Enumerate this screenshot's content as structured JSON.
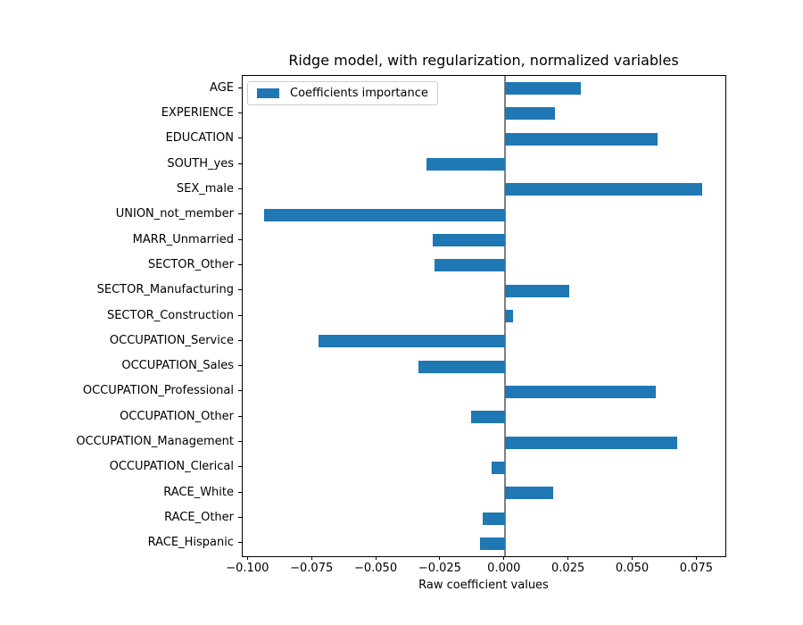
{
  "figure": {
    "background": "#ffffff",
    "colors": {
      "bar": "#1f77b4",
      "zero_line": "#808080",
      "spine": "#000000",
      "legend_border": "#cccccc",
      "text": "#000000"
    }
  },
  "chart_data": {
    "type": "bar",
    "orientation": "horizontal",
    "title": "Ridge model, with regularization, normalized variables",
    "xlabel": "Raw coefficient values",
    "ylabel": "",
    "legend": [
      "Coefficients importance"
    ],
    "legend_position": "upper left",
    "grid": false,
    "categories": [
      "AGE",
      "EXPERIENCE",
      "EDUCATION",
      "SOUTH_yes",
      "SEX_male",
      "UNION_not_member",
      "MARR_Unmarried",
      "SECTOR_Other",
      "SECTOR_Manufacturing",
      "SECTOR_Construction",
      "OCCUPATION_Service",
      "OCCUPATION_Sales",
      "OCCUPATION_Professional",
      "OCCUPATION_Other",
      "OCCUPATION_Management",
      "OCCUPATION_Clerical",
      "RACE_White",
      "RACE_Other",
      "RACE_Hispanic"
    ],
    "values": [
      0.0297,
      0.0197,
      0.0594,
      -0.0304,
      0.0769,
      -0.0937,
      -0.0281,
      -0.0274,
      0.025,
      0.0033,
      -0.0726,
      -0.0335,
      0.0587,
      -0.0133,
      0.0673,
      -0.005,
      0.019,
      -0.0085,
      -0.0098
    ],
    "zero_reference_line": 0.0,
    "xlim": [
      -0.1022,
      0.086
    ],
    "xticks": [
      -0.1,
      -0.075,
      -0.05,
      -0.025,
      0.0,
      0.025,
      0.05,
      0.075
    ],
    "xtick_labels": [
      "−0.100",
      "−0.075",
      "−0.050",
      "−0.025",
      "0.000",
      "0.025",
      "0.050",
      "0.075"
    ]
  }
}
